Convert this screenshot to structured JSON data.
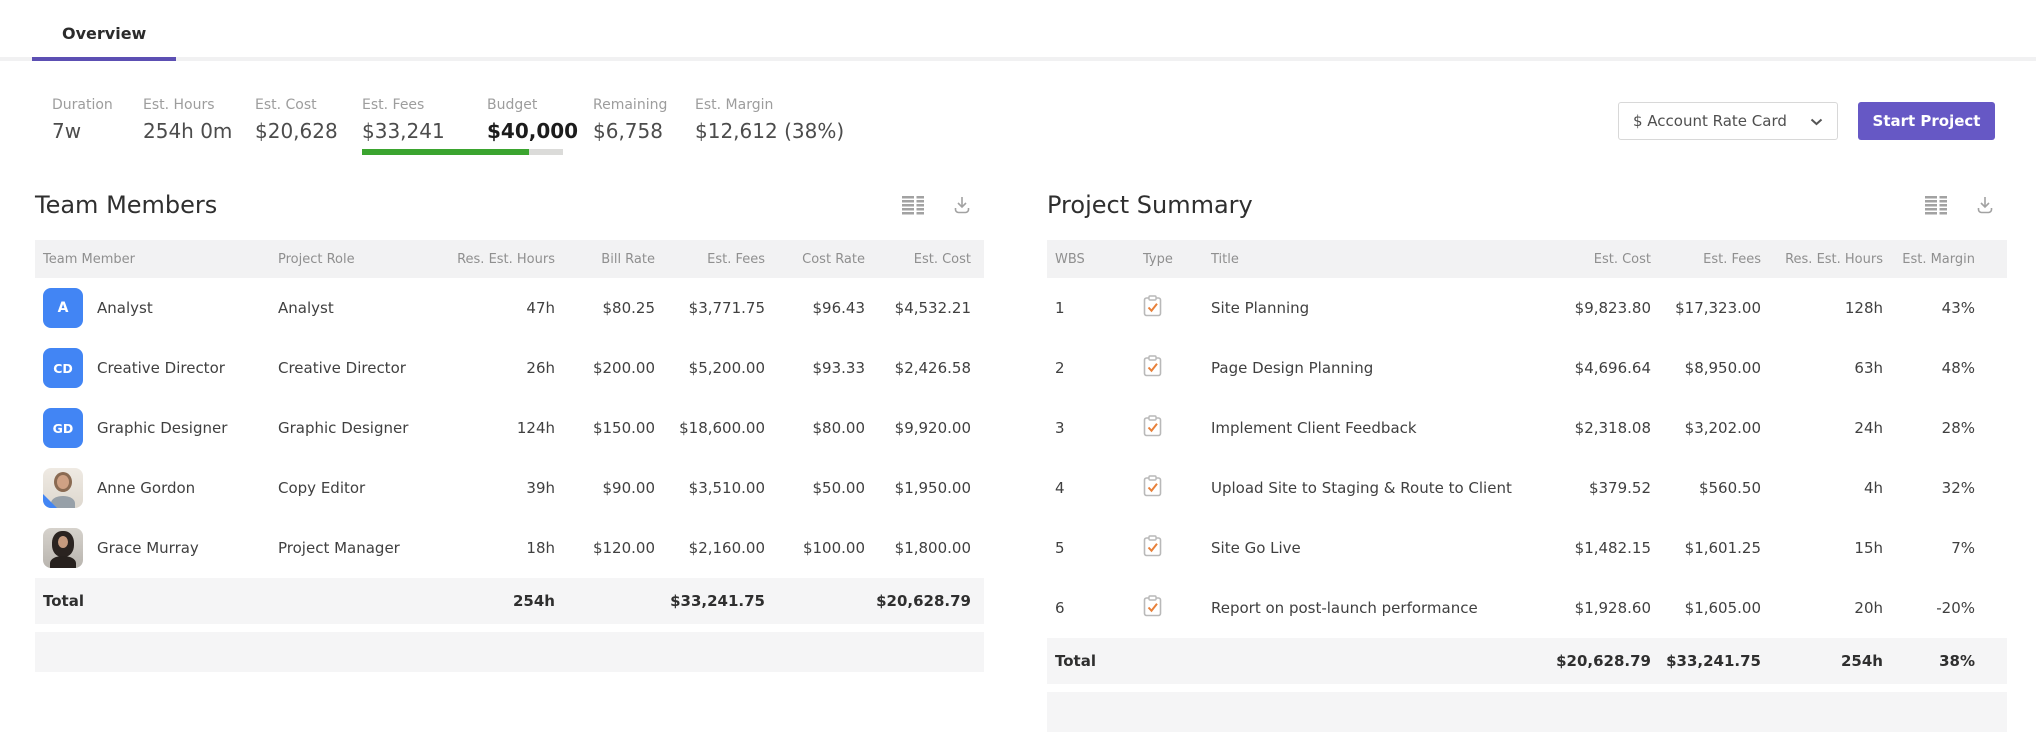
{
  "tabs": {
    "items": [
      {
        "label": "Overview",
        "active": true
      }
    ]
  },
  "stats": {
    "items": [
      {
        "label": "Duration",
        "value": "7w"
      },
      {
        "label": "Est. Hours",
        "value": "254h 0m"
      },
      {
        "label": "Est. Cost",
        "value": "$20,628"
      },
      {
        "label": "Est. Fees",
        "value": "$33,241"
      },
      {
        "label": "Budget",
        "value": "$40,000",
        "emphasis": true
      },
      {
        "label": "Remaining",
        "value": "$6,758"
      },
      {
        "label": "Est. Margin",
        "value": "$12,612 (38%)"
      }
    ],
    "budget_progress_percent": 83
  },
  "controls": {
    "rate_card_value": "$ Account Rate Card",
    "start_project_label": "Start Project"
  },
  "team_members": {
    "title": "Team Members",
    "columns": [
      "Team Member",
      "Project Role",
      "Res. Est. Hours",
      "Bill Rate",
      "Est. Fees",
      "Cost Rate",
      "Est. Cost"
    ],
    "rows": [
      {
        "avatar": {
          "type": "initials",
          "text": "A"
        },
        "name": "Analyst",
        "role": "Analyst",
        "hours": "47h",
        "bill_rate": "$80.25",
        "est_fees": "$3,771.75",
        "cost_rate": "$96.43",
        "est_cost": "$4,532.21"
      },
      {
        "avatar": {
          "type": "initials",
          "text": "CD"
        },
        "name": "Creative Director",
        "role": "Creative Director",
        "hours": "26h",
        "bill_rate": "$200.00",
        "est_fees": "$5,200.00",
        "cost_rate": "$93.33",
        "est_cost": "$2,426.58"
      },
      {
        "avatar": {
          "type": "initials",
          "text": "GD"
        },
        "name": "Graphic Designer",
        "role": "Graphic Designer",
        "hours": "124h",
        "bill_rate": "$150.00",
        "est_fees": "$18,600.00",
        "cost_rate": "$80.00",
        "est_cost": "$9,920.00"
      },
      {
        "avatar": {
          "type": "photo",
          "variant": "anne",
          "corner": true
        },
        "name": "Anne Gordon",
        "role": "Copy Editor",
        "hours": "39h",
        "bill_rate": "$90.00",
        "est_fees": "$3,510.00",
        "cost_rate": "$50.00",
        "est_cost": "$1,950.00"
      },
      {
        "avatar": {
          "type": "photo",
          "variant": "grace"
        },
        "name": "Grace Murray",
        "role": "Project Manager",
        "hours": "18h",
        "bill_rate": "$120.00",
        "est_fees": "$2,160.00",
        "cost_rate": "$100.00",
        "est_cost": "$1,800.00"
      }
    ],
    "total": {
      "label": "Total",
      "hours": "254h",
      "est_fees": "$33,241.75",
      "est_cost": "$20,628.79"
    }
  },
  "project_summary": {
    "title": "Project Summary",
    "columns": [
      "WBS",
      "Type",
      "Title",
      "Est. Cost",
      "Est. Fees",
      "Res. Est. Hours",
      "Est. Margin"
    ],
    "rows": [
      {
        "wbs": "1",
        "type": "task-checked",
        "title": "Site Planning",
        "est_cost": "$9,823.80",
        "est_fees": "$17,323.00",
        "hours": "128h",
        "margin": "43%"
      },
      {
        "wbs": "2",
        "type": "task-checked",
        "title": "Page Design Planning",
        "est_cost": "$4,696.64",
        "est_fees": "$8,950.00",
        "hours": "63h",
        "margin": "48%"
      },
      {
        "wbs": "3",
        "type": "task-checked",
        "title": "Implement Client Feedback",
        "est_cost": "$2,318.08",
        "est_fees": "$3,202.00",
        "hours": "24h",
        "margin": "28%"
      },
      {
        "wbs": "4",
        "type": "task-checked",
        "title": "Upload Site to Staging & Route to Client",
        "est_cost": "$379.52",
        "est_fees": "$560.50",
        "hours": "4h",
        "margin": "32%"
      },
      {
        "wbs": "5",
        "type": "task-checked",
        "title": "Site Go Live",
        "est_cost": "$1,482.15",
        "est_fees": "$1,601.25",
        "hours": "15h",
        "margin": "7%"
      },
      {
        "wbs": "6",
        "type": "task-checked",
        "title": "Report on post-launch performance",
        "est_cost": "$1,928.60",
        "est_fees": "$1,605.00",
        "hours": "20h",
        "margin": "-20%"
      }
    ],
    "total": {
      "label": "Total",
      "est_cost": "$20,628.79",
      "est_fees": "$33,241.75",
      "hours": "254h",
      "margin": "38%"
    }
  },
  "colors": {
    "accent_purple": "#6658C5",
    "tab_underline_purple": "#5C4FB3",
    "avatar_blue": "#4285F4",
    "progress_green": "#3BA42F",
    "progress_track": "#DBDBD9",
    "check_orange": "#E8813B",
    "header_bg": "#F2F2F3",
    "total_bg": "#F5F5F6"
  }
}
